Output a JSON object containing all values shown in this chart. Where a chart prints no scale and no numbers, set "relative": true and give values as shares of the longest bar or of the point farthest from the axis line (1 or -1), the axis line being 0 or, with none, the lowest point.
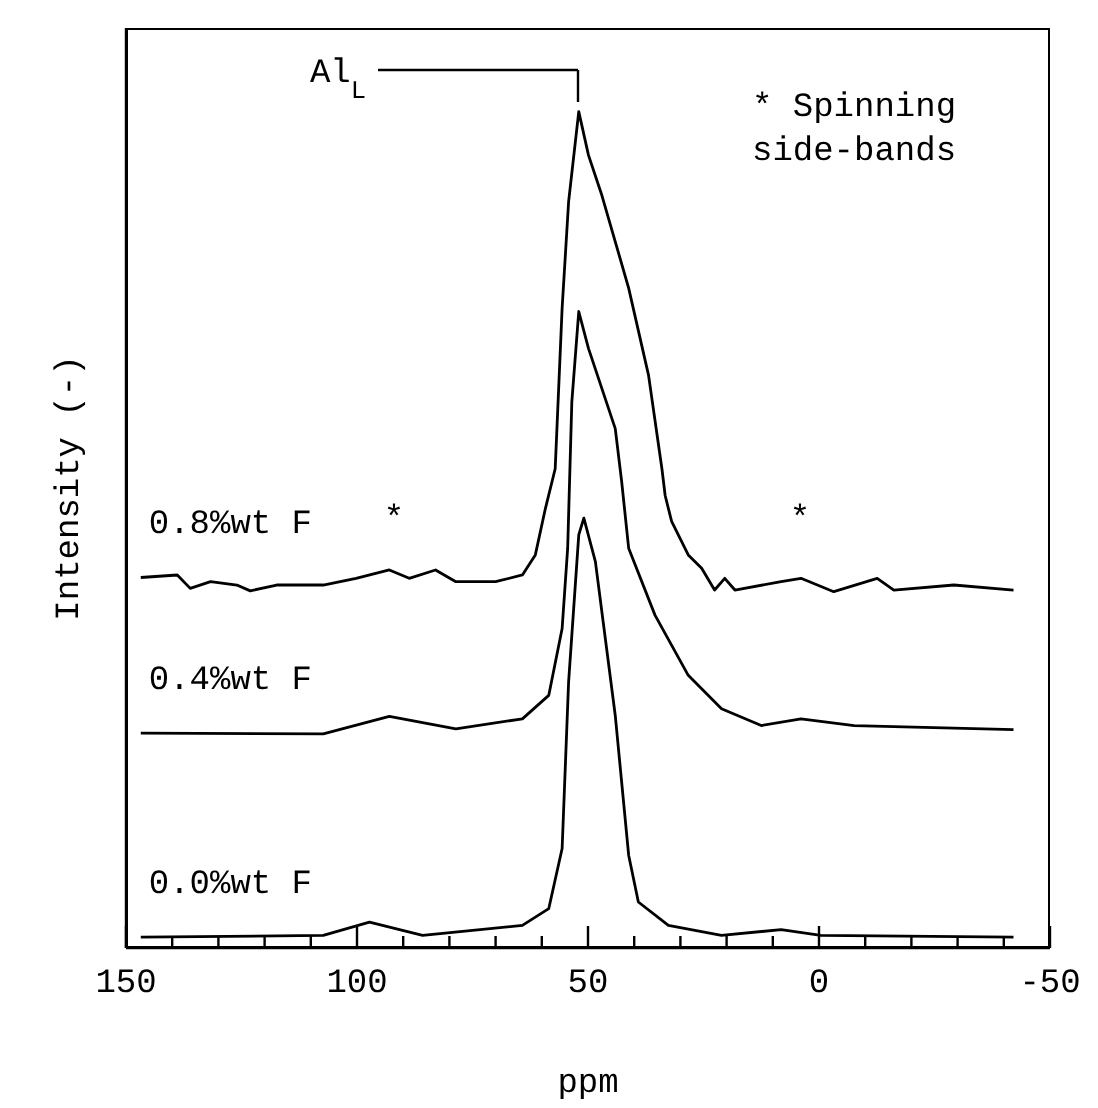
{
  "chart_data": {
    "type": "line",
    "relative": true,
    "xlabel": "ppm",
    "ylabel": "Intensity (-)",
    "xlim": [
      150,
      -50
    ],
    "xticks": [
      150,
      {
        "value": 140,
        "label": null
      },
      {
        "value": 130,
        "label": null
      },
      {
        "value": 120,
        "label": null
      },
      {
        "value": 110,
        "label": null
      },
      100,
      {
        "value": 90,
        "label": null
      },
      {
        "value": 80,
        "label": null
      },
      {
        "value": 70,
        "label": null
      },
      {
        "value": 60,
        "label": null
      },
      50,
      {
        "value": 40,
        "label": null
      },
      {
        "value": 30,
        "label": null
      },
      {
        "value": 20,
        "label": null
      },
      {
        "value": 10,
        "label": null
      },
      0,
      {
        "value": -10,
        "label": null
      },
      {
        "value": -20,
        "label": null
      },
      {
        "value": -30,
        "label": null
      },
      {
        "value": -40,
        "label": null
      },
      -50
    ],
    "series": [
      {
        "name": "0.8%wt F",
        "color": "#000000",
        "x": [
          146.8,
          138.9,
          136.1,
          131.7,
          126.0,
          123.1,
          117.4,
          107.3,
          100.2,
          93.0,
          88.7,
          83.0,
          78.6,
          70.0,
          64.2,
          61.4,
          59.2,
          57.1,
          55.6,
          54.2,
          52.0,
          49.9,
          47.0,
          41.2,
          36.9,
          34.0,
          33.3,
          31.9,
          28.3,
          25.4,
          22.6,
          20.4,
          18.2,
          8.2,
          3.9,
          -3.2,
          -12.6,
          -16.2,
          -29.2,
          -42.1
        ],
        "values": [
          0.443,
          0.446,
          0.43,
          0.438,
          0.434,
          0.427,
          0.434,
          0.434,
          0.442,
          0.452,
          0.442,
          0.452,
          0.438,
          0.438,
          0.446,
          0.47,
          0.526,
          0.573,
          0.765,
          0.892,
          1.0,
          0.948,
          0.9,
          0.789,
          0.685,
          0.573,
          0.541,
          0.51,
          0.47,
          0.454,
          0.428,
          0.442,
          0.428,
          0.438,
          0.442,
          0.426,
          0.442,
          0.428,
          0.434,
          0.428
        ]
      },
      {
        "name": "0.4%wt F",
        "color": "#000000",
        "x": [
          146.8,
          107.3,
          93.0,
          78.6,
          64.2,
          58.5,
          55.6,
          54.4,
          53.5,
          52.0,
          49.9,
          44.1,
          42.7,
          41.2,
          35.5,
          28.3,
          21.1,
          12.5,
          3.9,
          -7.6,
          -42.1
        ],
        "values": [
          0.257,
          0.256,
          0.277,
          0.262,
          0.274,
          0.302,
          0.382,
          0.478,
          0.653,
          0.761,
          0.717,
          0.621,
          0.557,
          0.478,
          0.398,
          0.326,
          0.286,
          0.266,
          0.274,
          0.266,
          0.261
        ]
      },
      {
        "name": "0.0%wt F",
        "color": "#000000",
        "x": [
          146.8,
          107.3,
          97.3,
          85.8,
          64.2,
          58.5,
          55.6,
          54.2,
          52.0,
          50.9,
          48.4,
          44.1,
          41.2,
          39.1,
          32.6,
          21.1,
          8.2,
          -0.4,
          -42.1
        ],
        "values": [
          0.013,
          0.015,
          0.031,
          0.015,
          0.027,
          0.047,
          0.119,
          0.318,
          0.494,
          0.514,
          0.462,
          0.278,
          0.111,
          0.055,
          0.027,
          0.015,
          0.022,
          0.015,
          0.013
        ]
      }
    ],
    "annotations": [
      "Al$_{L}$",
      "*",
      "*",
      "* Spinning side-bands"
    ]
  }
}
